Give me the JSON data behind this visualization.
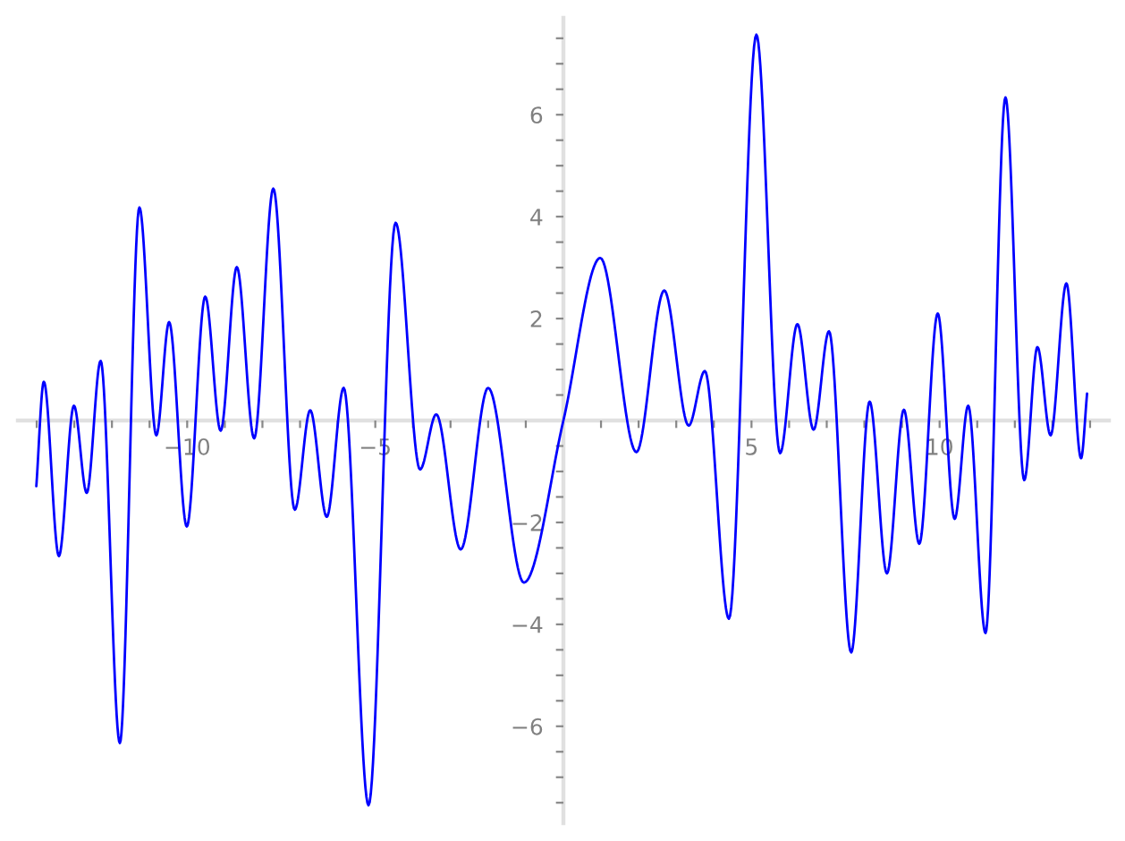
{
  "chart_data": {
    "type": "line",
    "x": [
      -14.01,
      -13.81,
      -13.41,
      -13.01,
      -12.67,
      -12.3,
      -11.79,
      -11.27,
      -10.82,
      -10.48,
      -10.01,
      -9.52,
      -9.11,
      -8.68,
      -8.22,
      -7.71,
      -7.14,
      -6.73,
      -6.29,
      -5.84,
      -5.18,
      -4.46,
      -3.81,
      -3.38,
      -2.73,
      -2.0,
      -1.05,
      0.0,
      0.98,
      1.94,
      2.68,
      3.33,
      3.76,
      4.4,
      5.13,
      5.76,
      6.22,
      6.65,
      7.06,
      7.65,
      8.14,
      8.6,
      9.05,
      9.46,
      9.95,
      10.4,
      10.76,
      11.22,
      11.75,
      12.25,
      12.6,
      12.95,
      13.37,
      13.76,
      13.92
    ],
    "values": [
      -1.29,
      0.76,
      -2.66,
      0.29,
      -1.42,
      1.17,
      -6.33,
      4.18,
      -0.29,
      1.93,
      -2.08,
      2.43,
      -0.2,
      3.01,
      -0.35,
      4.55,
      -1.75,
      0.2,
      -1.89,
      0.64,
      -7.55,
      3.88,
      -0.96,
      0.12,
      -2.53,
      0.64,
      -3.18,
      0.0,
      3.19,
      -0.62,
      2.55,
      -0.1,
      0.97,
      -3.89,
      7.57,
      -0.64,
      1.89,
      -0.18,
      1.75,
      -4.55,
      0.37,
      -3.0,
      0.21,
      -2.42,
      2.1,
      -1.93,
      0.29,
      -4.17,
      6.34,
      -1.17,
      1.44,
      -0.29,
      2.69,
      -0.74,
      0.53
    ],
    "color": "#0000ff",
    "line_style": "solid",
    "xlim": [
      -14.5,
      14.5
    ],
    "ylim": [
      -7.9,
      7.9
    ],
    "xticks": [
      {
        "value": -14,
        "label": null
      },
      {
        "value": -13,
        "label": null
      },
      {
        "value": -12,
        "label": null
      },
      {
        "value": -11,
        "label": null
      },
      {
        "value": -10,
        "label": "−10"
      },
      {
        "value": -9,
        "label": null
      },
      {
        "value": -8,
        "label": null
      },
      {
        "value": -7,
        "label": null
      },
      {
        "value": -6,
        "label": null
      },
      {
        "value": -5,
        "label": "−5"
      },
      {
        "value": -4,
        "label": null
      },
      {
        "value": -3,
        "label": null
      },
      {
        "value": -2,
        "label": null
      },
      {
        "value": -1,
        "label": null
      },
      {
        "value": 1,
        "label": null
      },
      {
        "value": 2,
        "label": null
      },
      {
        "value": 3,
        "label": null
      },
      {
        "value": 4,
        "label": null
      },
      5,
      {
        "value": 6,
        "label": null
      },
      {
        "value": 7,
        "label": null
      },
      {
        "value": 8,
        "label": null
      },
      {
        "value": 9,
        "label": null
      },
      10,
      {
        "value": 11,
        "label": null
      },
      {
        "value": 12,
        "label": null
      },
      {
        "value": 13,
        "label": null
      },
      {
        "value": 14,
        "label": null
      }
    ],
    "yticks": [
      {
        "value": -7.5,
        "label": null
      },
      {
        "value": -7,
        "label": null
      },
      {
        "value": -6.5,
        "label": null
      },
      {
        "value": -6,
        "label": "−6"
      },
      {
        "value": -5.5,
        "label": null
      },
      {
        "value": -5,
        "label": null
      },
      {
        "value": -4.5,
        "label": null
      },
      {
        "value": -4,
        "label": "−4"
      },
      {
        "value": -3.5,
        "label": null
      },
      {
        "value": -3,
        "label": null
      },
      {
        "value": -2.5,
        "label": null
      },
      {
        "value": -2,
        "label": "−2"
      },
      {
        "value": -1.5,
        "label": null
      },
      {
        "value": -1,
        "label": null
      },
      {
        "value": -0.5,
        "label": null
      },
      {
        "value": 0.5,
        "label": null
      },
      {
        "value": 1,
        "label": null
      },
      {
        "value": 1.5,
        "label": null
      },
      2,
      {
        "value": 2.5,
        "label": null
      },
      {
        "value": 3,
        "label": null
      },
      {
        "value": 3.5,
        "label": null
      },
      4,
      {
        "value": 4.5,
        "label": null
      },
      {
        "value": 5,
        "label": null
      },
      {
        "value": 5.5,
        "label": null
      },
      6,
      {
        "value": 6.5,
        "label": null
      },
      {
        "value": 7,
        "label": null
      },
      {
        "value": 7.5,
        "label": null
      }
    ]
  }
}
